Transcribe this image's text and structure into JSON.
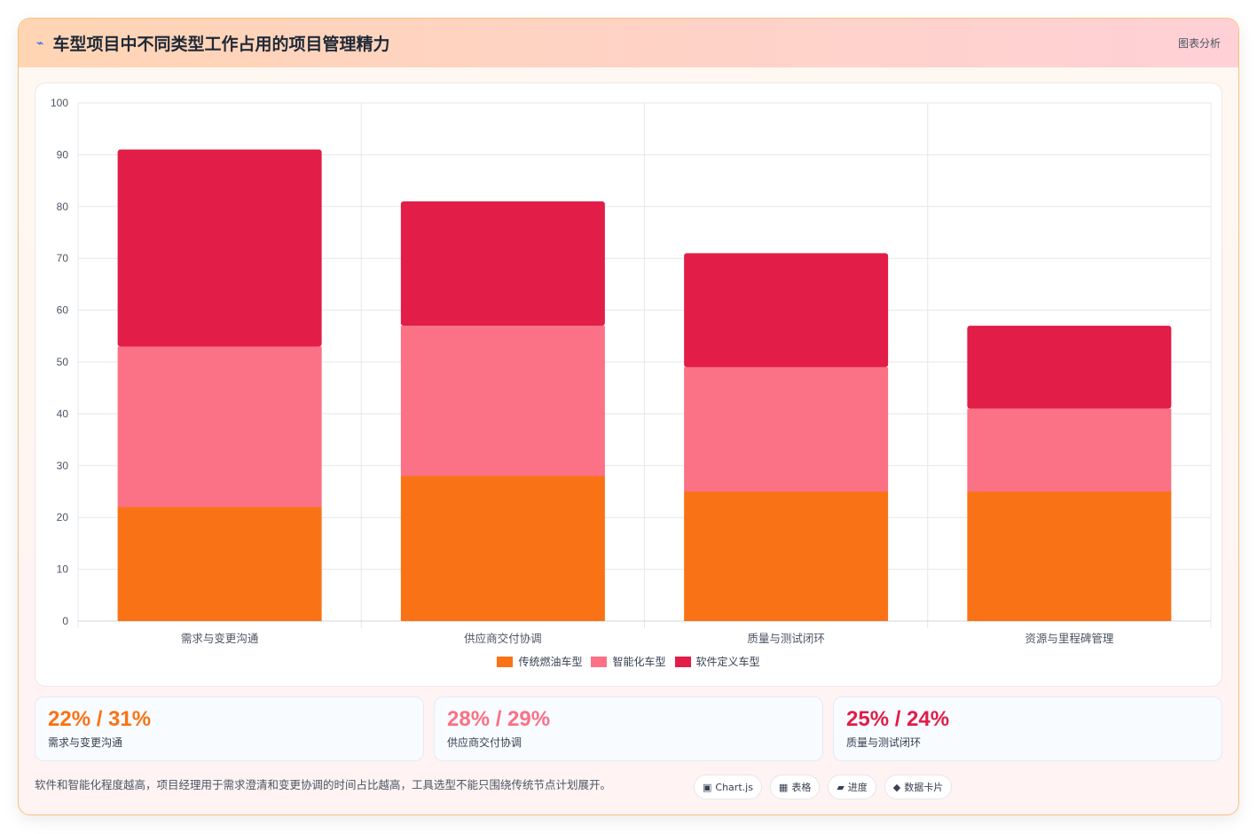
{
  "header": {
    "icon": "bolt-icon",
    "title": "车型项目中不同类型工作占用的项目管理精力",
    "tag": "图表分析"
  },
  "chart_data": {
    "type": "bar",
    "stacked": true,
    "categories": [
      "需求与变更沟通",
      "供应商交付协调",
      "质量与测试闭环",
      "资源与里程碑管理"
    ],
    "series": [
      {
        "name": "传统燃油车型",
        "color": "#f97316",
        "values": [
          22,
          28,
          25,
          25
        ]
      },
      {
        "name": "智能化车型",
        "color": "#fb7185",
        "values": [
          31,
          29,
          24,
          16
        ]
      },
      {
        "name": "软件定义车型",
        "color": "#e11d48",
        "values": [
          38,
          24,
          22,
          16
        ]
      }
    ],
    "ylim": [
      0,
      100
    ],
    "yticks": [
      0,
      10,
      20,
      30,
      40,
      50,
      60,
      70,
      80,
      90,
      100
    ],
    "grid": true,
    "legend": "bottom"
  },
  "stats": [
    {
      "value": "22% / 31%",
      "label": "需求与变更沟通",
      "color": "#f97316"
    },
    {
      "value": "28% / 29%",
      "label": "供应商交付协调",
      "color": "#fb7185"
    },
    {
      "value": "25% / 24%",
      "label": "质量与测试闭环",
      "color": "#e11d48"
    }
  ],
  "footer": {
    "text": "软件和智能化程度越高，项目经理用于需求澄清和变更协调的时间占比越高，工具选型不能只围绕传统节点计划展开。",
    "chips": [
      {
        "icon": "▣",
        "label": "Chart.js"
      },
      {
        "icon": "▦",
        "label": "表格"
      },
      {
        "icon": "▰",
        "label": "进度"
      },
      {
        "icon": "◆",
        "label": "数据卡片"
      }
    ]
  }
}
